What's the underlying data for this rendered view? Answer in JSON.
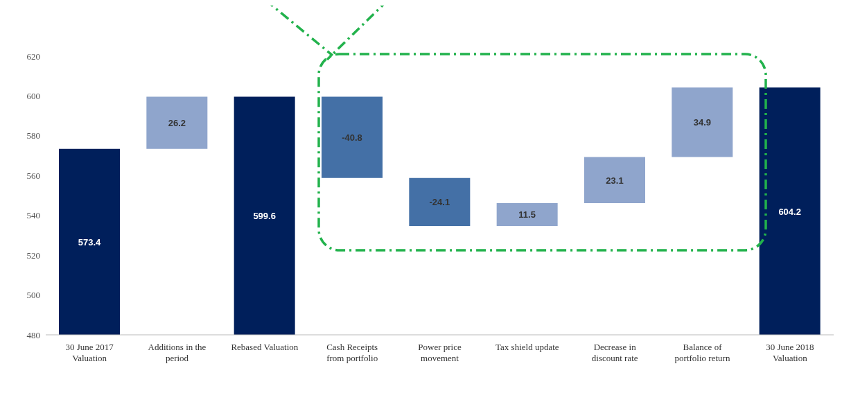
{
  "chart_data": {
    "type": "bar",
    "categories": [
      "30 June 2017 Valuation",
      "Additions in the period",
      "Rebased Valuation",
      "Cash Receipts from portfolio",
      "Power price movement",
      "Tax shield update",
      "Decrease in discount rate",
      "Balance of portfolio return",
      "30 June 2018 Valuation"
    ],
    "values": [
      573.4,
      26.2,
      599.6,
      -40.8,
      -24.1,
      11.5,
      23.1,
      34.9,
      604.2
    ],
    "base": [
      null,
      573.4,
      null,
      599.6,
      558.8,
      534.7,
      546.2,
      569.3,
      null
    ],
    "colors": [
      "#001f5b",
      "#8fa5cc",
      "#001f5b",
      "#4470a6",
      "#4470a6",
      "#8fa5cc",
      "#8fa5cc",
      "#8fa5cc",
      "#001f5b"
    ],
    "ylim": [
      480,
      620
    ],
    "yticks": [
      480,
      500,
      520,
      540,
      560,
      580,
      600,
      620
    ],
    "grid": false,
    "legend": false,
    "data_labels": true
  }
}
